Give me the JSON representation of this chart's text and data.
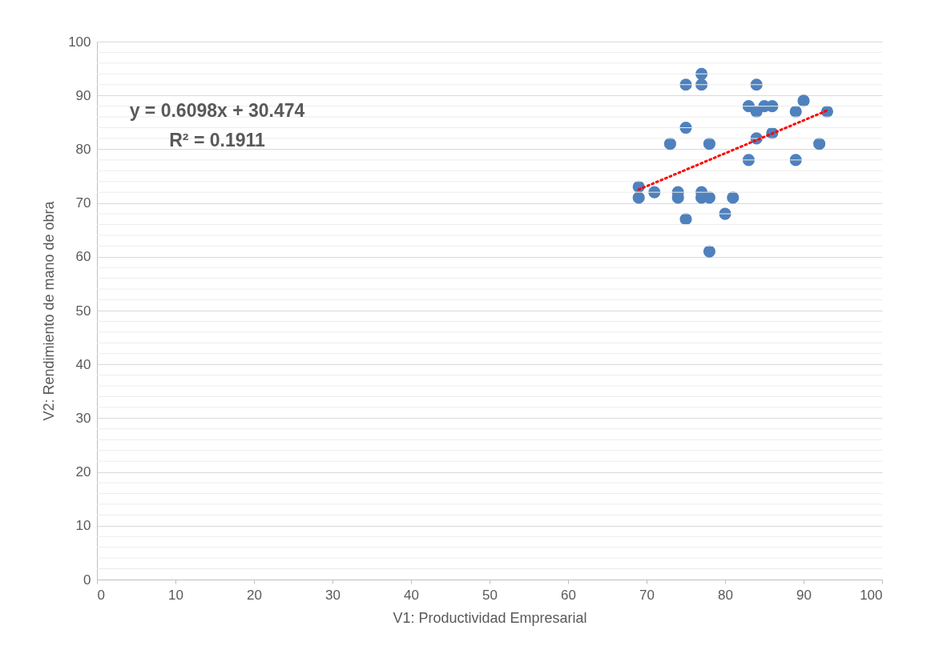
{
  "chart_data": {
    "type": "scatter",
    "xlabel": "V1: Productividad Empresarial",
    "ylabel": "V2: Rendimiento de mano de obra",
    "annotations": [
      "y = 0.6098x + 30.474",
      "R² = 0.1911"
    ],
    "xlim": [
      0,
      100
    ],
    "ylim": [
      0,
      100
    ],
    "xticks": [
      0,
      10,
      20,
      30,
      40,
      50,
      60,
      70,
      80,
      90,
      100
    ],
    "yticks": [
      0,
      {
        "value": 2,
        "label": null
      },
      {
        "value": 4,
        "label": null
      },
      {
        "value": 6,
        "label": null
      },
      {
        "value": 8,
        "label": null
      },
      10,
      {
        "value": 12,
        "label": null
      },
      {
        "value": 14,
        "label": null
      },
      {
        "value": 16,
        "label": null
      },
      {
        "value": 18,
        "label": null
      },
      20,
      {
        "value": 22,
        "label": null
      },
      {
        "value": 24,
        "label": null
      },
      {
        "value": 26,
        "label": null
      },
      {
        "value": 28,
        "label": null
      },
      30,
      {
        "value": 32,
        "label": null
      },
      {
        "value": 34,
        "label": null
      },
      {
        "value": 36,
        "label": null
      },
      {
        "value": 38,
        "label": null
      },
      40,
      {
        "value": 42,
        "label": null
      },
      {
        "value": 44,
        "label": null
      },
      {
        "value": 46,
        "label": null
      },
      {
        "value": 48,
        "label": null
      },
      50,
      {
        "value": 52,
        "label": null
      },
      {
        "value": 54,
        "label": null
      },
      {
        "value": 56,
        "label": null
      },
      {
        "value": 58,
        "label": null
      },
      60,
      {
        "value": 62,
        "label": null
      },
      {
        "value": 64,
        "label": null
      },
      {
        "value": 66,
        "label": null
      },
      {
        "value": 68,
        "label": null
      },
      70,
      {
        "value": 72,
        "label": null
      },
      {
        "value": 74,
        "label": null
      },
      {
        "value": 76,
        "label": null
      },
      {
        "value": 78,
        "label": null
      },
      80,
      {
        "value": 82,
        "label": null
      },
      {
        "value": 84,
        "label": null
      },
      {
        "value": 86,
        "label": null
      },
      {
        "value": 88,
        "label": null
      },
      90,
      {
        "value": 92,
        "label": null
      },
      {
        "value": 94,
        "label": null
      },
      {
        "value": 96,
        "label": null
      },
      {
        "value": 98,
        "label": null
      },
      100
    ],
    "grid": "y",
    "marker": "circle",
    "series": [
      {
        "color": "#4f81bd",
        "x": [
          69,
          69,
          71,
          73,
          74,
          74,
          75,
          75,
          75,
          77,
          77,
          77,
          77,
          78,
          78,
          78,
          80,
          81,
          83,
          83,
          84,
          84,
          84,
          85,
          86,
          86,
          89,
          89,
          90,
          92,
          93
        ],
        "values": [
          73,
          71,
          72,
          81,
          72,
          71,
          92,
          84,
          67,
          94,
          92,
          72,
          71,
          71,
          81,
          61,
          68,
          71,
          88,
          78,
          92,
          87,
          82,
          88,
          88,
          83,
          87,
          78,
          89,
          81,
          87
        ]
      },
      {
        "type": "line",
        "marker": "none",
        "color": "#ff0000",
        "line_style": "dotted",
        "x": [
          69,
          93
        ],
        "values": [
          72.5,
          87.2
        ]
      }
    ]
  }
}
